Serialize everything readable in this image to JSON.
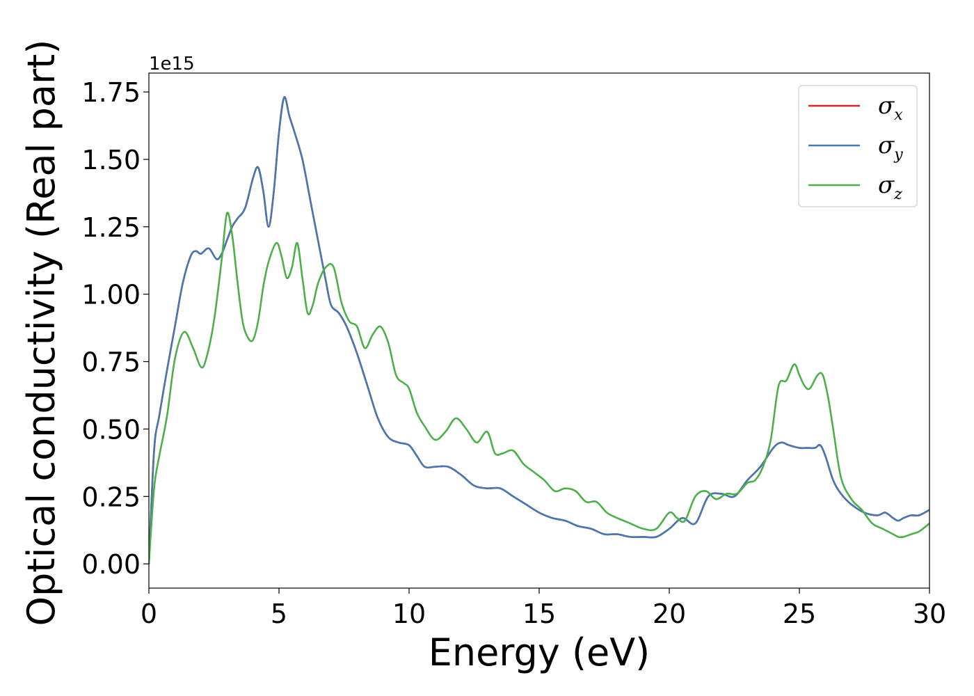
{
  "chart_data": {
    "type": "line",
    "xlabel": "Energy (eV)",
    "ylabel": "Optical conductivity (Real part)",
    "y_offset_label": "1e15",
    "xlim": [
      0,
      30
    ],
    "ylim": [
      -0.09,
      1.82
    ],
    "x_ticks": [
      0,
      5,
      10,
      15,
      20,
      25,
      30
    ],
    "x_tick_labels": [
      "0",
      "5",
      "10",
      "15",
      "20",
      "25",
      "30"
    ],
    "y_ticks": [
      0.0,
      0.25,
      0.5,
      0.75,
      1.0,
      1.25,
      1.5,
      1.75
    ],
    "y_tick_labels": [
      "0.00",
      "0.25",
      "0.50",
      "0.75",
      "1.00",
      "1.25",
      "1.50",
      "1.75"
    ],
    "grid": false,
    "legend_position": "top-right",
    "series": [
      {
        "name": "σ",
        "subscript": "x",
        "color": "#d62728",
        "x": [
          0,
          0.2,
          0.4,
          0.7,
          1.0,
          1.3,
          1.6,
          1.8,
          2.0,
          2.3,
          2.6,
          2.8,
          3.0,
          3.2,
          3.4,
          3.7,
          4.0,
          4.2,
          4.4,
          4.6,
          4.8,
          5.0,
          5.2,
          5.4,
          5.6,
          5.9,
          6.2,
          6.5,
          6.8,
          7.0,
          7.3,
          7.6,
          8.0,
          8.4,
          8.8,
          9.2,
          9.6,
          10.0,
          10.3,
          10.6,
          11.0,
          11.5,
          12.0,
          12.5,
          13.0,
          13.5,
          14.0,
          14.5,
          15.0,
          15.5,
          16.0,
          16.5,
          17.0,
          17.5,
          18.0,
          18.5,
          19.0,
          19.5,
          20.0,
          20.5,
          21.0,
          21.5,
          22.0,
          22.5,
          23.0,
          23.5,
          24.0,
          24.3,
          24.6,
          25.0,
          25.3,
          25.6,
          25.8,
          26.0,
          26.3,
          26.6,
          27.0,
          27.5,
          28.0,
          28.3,
          28.6,
          28.8,
          29.0,
          29.3,
          29.6,
          30.0
        ],
        "y": [
          0.0,
          0.42,
          0.55,
          0.72,
          0.88,
          1.04,
          1.14,
          1.16,
          1.15,
          1.17,
          1.13,
          1.15,
          1.2,
          1.25,
          1.28,
          1.32,
          1.43,
          1.47,
          1.38,
          1.25,
          1.38,
          1.6,
          1.73,
          1.66,
          1.6,
          1.5,
          1.35,
          1.2,
          1.05,
          0.96,
          0.93,
          0.88,
          0.78,
          0.66,
          0.54,
          0.47,
          0.45,
          0.44,
          0.4,
          0.36,
          0.36,
          0.36,
          0.33,
          0.29,
          0.28,
          0.28,
          0.25,
          0.22,
          0.19,
          0.17,
          0.16,
          0.14,
          0.13,
          0.11,
          0.11,
          0.1,
          0.1,
          0.1,
          0.13,
          0.17,
          0.15,
          0.25,
          0.26,
          0.25,
          0.31,
          0.36,
          0.43,
          0.45,
          0.44,
          0.43,
          0.43,
          0.43,
          0.44,
          0.4,
          0.31,
          0.26,
          0.22,
          0.19,
          0.18,
          0.19,
          0.17,
          0.16,
          0.17,
          0.18,
          0.18,
          0.2
        ]
      },
      {
        "name": "σ",
        "subscript": "y",
        "color": "#4878b0",
        "x": [
          0,
          0.2,
          0.4,
          0.7,
          1.0,
          1.3,
          1.6,
          1.8,
          2.0,
          2.3,
          2.6,
          2.8,
          3.0,
          3.2,
          3.4,
          3.7,
          4.0,
          4.2,
          4.4,
          4.6,
          4.8,
          5.0,
          5.2,
          5.4,
          5.6,
          5.9,
          6.2,
          6.5,
          6.8,
          7.0,
          7.3,
          7.6,
          8.0,
          8.4,
          8.8,
          9.2,
          9.6,
          10.0,
          10.3,
          10.6,
          11.0,
          11.5,
          12.0,
          12.5,
          13.0,
          13.5,
          14.0,
          14.5,
          15.0,
          15.5,
          16.0,
          16.5,
          17.0,
          17.5,
          18.0,
          18.5,
          19.0,
          19.5,
          20.0,
          20.5,
          21.0,
          21.5,
          22.0,
          22.5,
          23.0,
          23.5,
          24.0,
          24.3,
          24.6,
          25.0,
          25.3,
          25.6,
          25.8,
          26.0,
          26.3,
          26.6,
          27.0,
          27.5,
          28.0,
          28.3,
          28.6,
          28.8,
          29.0,
          29.3,
          29.6,
          30.0
        ],
        "y": [
          0.0,
          0.42,
          0.55,
          0.72,
          0.88,
          1.04,
          1.14,
          1.16,
          1.15,
          1.17,
          1.13,
          1.15,
          1.2,
          1.25,
          1.28,
          1.32,
          1.43,
          1.47,
          1.38,
          1.25,
          1.38,
          1.6,
          1.73,
          1.66,
          1.6,
          1.5,
          1.35,
          1.2,
          1.05,
          0.96,
          0.93,
          0.88,
          0.78,
          0.66,
          0.54,
          0.47,
          0.45,
          0.44,
          0.4,
          0.36,
          0.36,
          0.36,
          0.33,
          0.29,
          0.28,
          0.28,
          0.25,
          0.22,
          0.19,
          0.17,
          0.16,
          0.14,
          0.13,
          0.11,
          0.11,
          0.1,
          0.1,
          0.1,
          0.13,
          0.17,
          0.15,
          0.25,
          0.26,
          0.25,
          0.31,
          0.36,
          0.43,
          0.45,
          0.44,
          0.43,
          0.43,
          0.43,
          0.44,
          0.4,
          0.31,
          0.26,
          0.22,
          0.19,
          0.18,
          0.19,
          0.17,
          0.16,
          0.17,
          0.18,
          0.18,
          0.2
        ]
      },
      {
        "name": "σ",
        "subscript": "z",
        "color": "#4daf4a",
        "x": [
          0,
          0.2,
          0.4,
          0.7,
          1.0,
          1.35,
          1.7,
          2.0,
          2.2,
          2.5,
          2.8,
          3.0,
          3.2,
          3.4,
          3.6,
          3.8,
          4.0,
          4.2,
          4.4,
          4.6,
          4.9,
          5.1,
          5.3,
          5.5,
          5.7,
          5.9,
          6.1,
          6.3,
          6.5,
          6.8,
          7.1,
          7.4,
          7.7,
          8.0,
          8.3,
          8.6,
          8.9,
          9.2,
          9.5,
          9.8,
          10.0,
          10.3,
          10.6,
          11.0,
          11.4,
          11.8,
          12.2,
          12.6,
          13.0,
          13.3,
          13.6,
          14.0,
          14.4,
          14.8,
          15.2,
          15.6,
          16.0,
          16.4,
          16.8,
          17.2,
          17.6,
          18.0,
          18.5,
          19.0,
          19.5,
          20.0,
          20.3,
          20.6,
          21.0,
          21.4,
          21.8,
          22.2,
          22.6,
          23.0,
          23.3,
          23.6,
          23.9,
          24.2,
          24.5,
          24.8,
          25.0,
          25.2,
          25.4,
          25.7,
          25.9,
          26.1,
          26.3,
          26.6,
          27.0,
          27.4,
          27.8,
          28.2,
          28.6,
          28.8,
          29.0,
          29.3,
          29.6,
          30.0
        ],
        "y": [
          0.0,
          0.28,
          0.4,
          0.55,
          0.76,
          0.86,
          0.8,
          0.73,
          0.76,
          0.9,
          1.13,
          1.3,
          1.22,
          1.05,
          0.9,
          0.84,
          0.83,
          0.9,
          1.03,
          1.12,
          1.19,
          1.14,
          1.06,
          1.1,
          1.19,
          1.06,
          0.93,
          0.96,
          1.04,
          1.1,
          1.1,
          0.97,
          0.9,
          0.88,
          0.8,
          0.85,
          0.88,
          0.82,
          0.7,
          0.67,
          0.65,
          0.56,
          0.51,
          0.46,
          0.49,
          0.54,
          0.5,
          0.45,
          0.49,
          0.41,
          0.41,
          0.42,
          0.37,
          0.34,
          0.31,
          0.27,
          0.28,
          0.27,
          0.23,
          0.23,
          0.19,
          0.17,
          0.15,
          0.13,
          0.13,
          0.19,
          0.17,
          0.16,
          0.25,
          0.27,
          0.24,
          0.26,
          0.26,
          0.3,
          0.31,
          0.36,
          0.46,
          0.66,
          0.68,
          0.74,
          0.7,
          0.66,
          0.65,
          0.7,
          0.7,
          0.62,
          0.5,
          0.32,
          0.24,
          0.2,
          0.15,
          0.13,
          0.11,
          0.1,
          0.1,
          0.11,
          0.12,
          0.15
        ]
      }
    ]
  }
}
